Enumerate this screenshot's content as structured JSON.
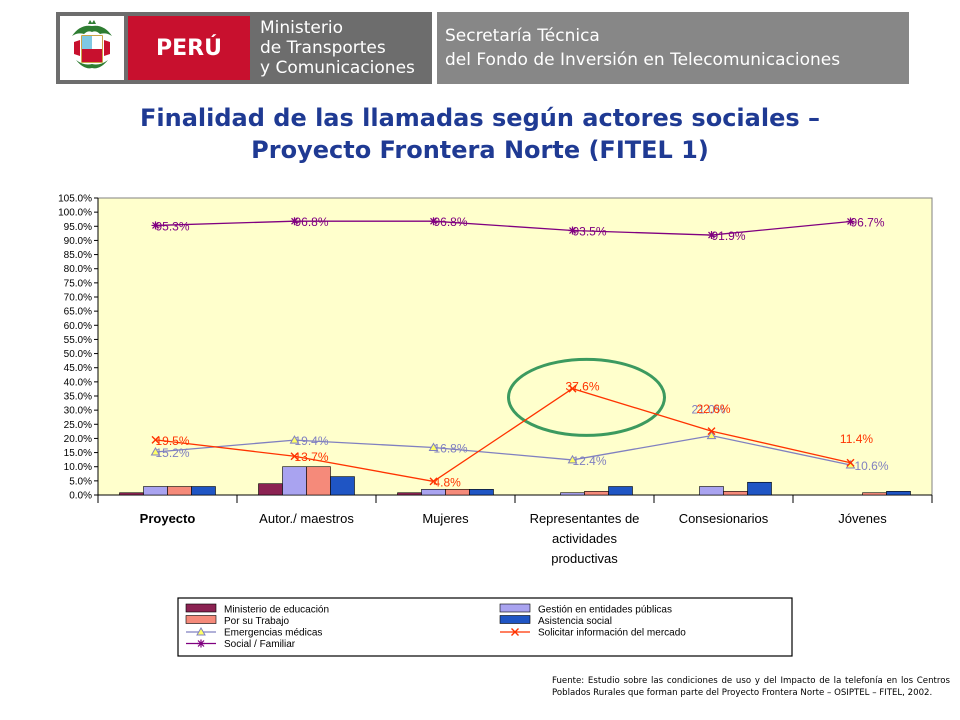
{
  "header": {
    "peru_label": "PERÚ",
    "ministry_lines": [
      "Ministerio",
      "de Transportes",
      "y Comunicaciones"
    ],
    "secretaria_lines": [
      "Secretaría Técnica",
      "del Fondo de Inversión en Telecomunicaciones"
    ]
  },
  "title_lines": [
    "Finalidad de las llamadas según actores sociales –",
    "Proyecto Frontera Norte (FITEL 1)"
  ],
  "source_note": "Fuente: Estudio sobre las condiciones de uso y del Impacto de la telefonía en los Centros Poblados Rurales que forman parte del Proyecto Frontera Norte – OSIPTEL – FITEL, 2002.",
  "chart_data": {
    "type": "bar",
    "categories": [
      [
        "Proyecto"
      ],
      [
        "Autor./ maestros"
      ],
      [
        "Mujeres"
      ],
      [
        "Representantes de",
        "actividades",
        "productivas"
      ],
      [
        "Consesionarios"
      ],
      [
        "Jóvenes"
      ]
    ],
    "ylim": [
      0,
      105
    ],
    "yticks": [
      "0.0%",
      "5.0%",
      "10.0%",
      "15.0%",
      "20.0%",
      "25.0%",
      "30.0%",
      "35.0%",
      "40.0%",
      "45.0%",
      "50.0%",
      "55.0%",
      "60.0%",
      "65.0%",
      "70.0%",
      "75.0%",
      "80.0%",
      "85.0%",
      "90.0%",
      "95.0%",
      "100.0%",
      "105.0%"
    ],
    "bar_series": [
      {
        "name": "Ministerio de educación",
        "color": "#8b2252",
        "values": [
          0.8,
          4.0,
          0.8,
          0,
          0,
          0
        ]
      },
      {
        "name": "Gestión en entidades públicas",
        "color": "#a9a3f0",
        "values": [
          3.0,
          10.0,
          2.0,
          0.8,
          3.0,
          0
        ]
      },
      {
        "name": "Por su Trabajo",
        "color": "#f58a7a",
        "values": [
          3.0,
          10.0,
          2.0,
          1.3,
          1.3,
          0.8
        ]
      },
      {
        "name": "Asistencia social",
        "color": "#1f55c4",
        "values": [
          3.0,
          6.5,
          2.0,
          3.0,
          4.5,
          1.3
        ]
      }
    ],
    "line_series": [
      {
        "name": "Emergencias médicas",
        "color": "#8080c0",
        "marker": "triangle",
        "values": [
          15.2,
          19.4,
          16.8,
          12.4,
          21.0,
          10.6
        ],
        "labels": [
          "15.2%",
          "19.4%",
          "16.8%",
          "12.4%",
          "21.0%",
          "10.6%"
        ]
      },
      {
        "name": "Solicitar información del mercado",
        "color": "#ff3300",
        "marker": "x",
        "values": [
          19.5,
          13.7,
          4.8,
          37.6,
          22.6,
          11.4
        ],
        "labels": [
          "19.5%",
          "13.7%",
          "4.8%",
          "37.6%",
          "22.6%",
          "11.4%"
        ]
      },
      {
        "name": "Social / Familiar",
        "color": "#800080",
        "marker": "star",
        "values": [
          95.3,
          96.8,
          96.8,
          93.5,
          91.9,
          96.7
        ],
        "labels": [
          "95.3%",
          "96.8%",
          "96.8%",
          "93.5%",
          "91.9%",
          "96.7%"
        ]
      }
    ],
    "legend_placement": "bottom",
    "highlight": "Representantes de actividades productivas"
  }
}
